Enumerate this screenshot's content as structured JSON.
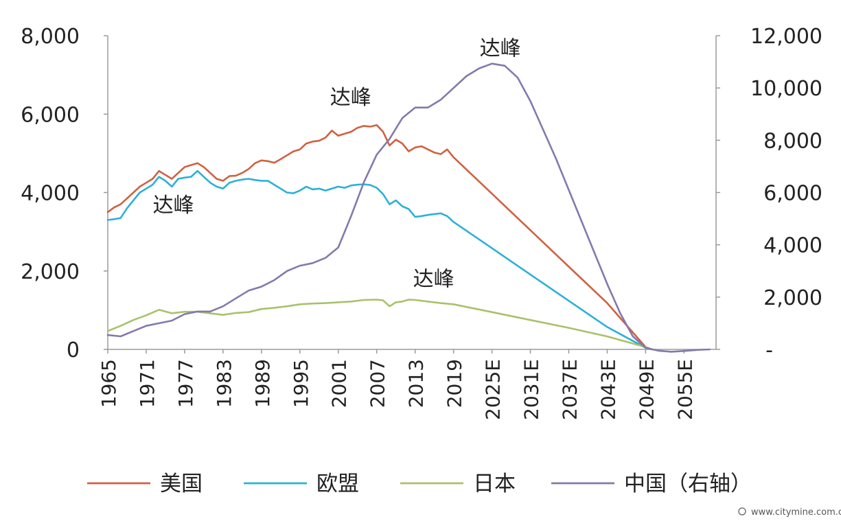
{
  "chart_data": {
    "type": "line",
    "title": "",
    "xlabel": "",
    "ylabel": "",
    "xlim": [
      1965,
      2060
    ],
    "ylim_left": [
      0,
      8000
    ],
    "ylim_right": [
      0,
      12000
    ],
    "grid": false,
    "legend_position": "bottom",
    "left_ticks": [
      0,
      2000,
      4000,
      6000,
      8000
    ],
    "left_tick_labels": [
      "0",
      "2,000",
      "4,000",
      "6,000",
      "8,000"
    ],
    "right_ticks": [
      0,
      2000,
      4000,
      6000,
      8000,
      10000,
      12000
    ],
    "right_tick_labels": [
      "-",
      "2,000",
      "4,000",
      "6,000",
      "8,000",
      "10,000",
      "12,000"
    ],
    "x_ticks": [
      1965,
      1971,
      1977,
      1983,
      1989,
      1995,
      2001,
      2007,
      2013,
      2019,
      2025,
      2031,
      2037,
      2043,
      2049,
      2055
    ],
    "x_tick_labels": [
      "1965",
      "1971",
      "1977",
      "1983",
      "1989",
      "1995",
      "2001",
      "2007",
      "2013",
      "2019",
      "2025E",
      "2031E",
      "2037E",
      "2043E",
      "2049E",
      "2055E"
    ],
    "series": [
      {
        "name": "美国",
        "axis": "left",
        "color": "#d0603f",
        "points": [
          [
            1965,
            3500
          ],
          [
            1966,
            3620
          ],
          [
            1967,
            3700
          ],
          [
            1968,
            3850
          ],
          [
            1969,
            4000
          ],
          [
            1970,
            4150
          ],
          [
            1971,
            4250
          ],
          [
            1972,
            4350
          ],
          [
            1973,
            4550
          ],
          [
            1974,
            4450
          ],
          [
            1975,
            4350
          ],
          [
            1976,
            4500
          ],
          [
            1977,
            4650
          ],
          [
            1978,
            4700
          ],
          [
            1979,
            4750
          ],
          [
            1980,
            4650
          ],
          [
            1981,
            4500
          ],
          [
            1982,
            4350
          ],
          [
            1983,
            4300
          ],
          [
            1984,
            4420
          ],
          [
            1985,
            4430
          ],
          [
            1986,
            4500
          ],
          [
            1987,
            4600
          ],
          [
            1988,
            4750
          ],
          [
            1989,
            4820
          ],
          [
            1990,
            4800
          ],
          [
            1991,
            4760
          ],
          [
            1992,
            4850
          ],
          [
            1993,
            4950
          ],
          [
            1994,
            5050
          ],
          [
            1995,
            5100
          ],
          [
            1996,
            5250
          ],
          [
            1997,
            5300
          ],
          [
            1998,
            5320
          ],
          [
            1999,
            5400
          ],
          [
            2000,
            5580
          ],
          [
            2001,
            5450
          ],
          [
            2002,
            5500
          ],
          [
            2003,
            5550
          ],
          [
            2004,
            5650
          ],
          [
            2005,
            5700
          ],
          [
            2006,
            5680
          ],
          [
            2007,
            5720
          ],
          [
            2008,
            5550
          ],
          [
            2009,
            5200
          ],
          [
            2010,
            5350
          ],
          [
            2011,
            5250
          ],
          [
            2012,
            5050
          ],
          [
            2013,
            5150
          ],
          [
            2014,
            5180
          ],
          [
            2015,
            5100
          ],
          [
            2016,
            5020
          ],
          [
            2017,
            4980
          ],
          [
            2018,
            5100
          ],
          [
            2019,
            4900
          ],
          [
            2025,
            3970
          ],
          [
            2031,
            3040
          ],
          [
            2037,
            2110
          ],
          [
            2043,
            1180
          ],
          [
            2049,
            60
          ],
          [
            2050,
            0
          ]
        ]
      },
      {
        "name": "欧盟",
        "axis": "left",
        "color": "#2bb0d9",
        "points": [
          [
            1965,
            3300
          ],
          [
            1966,
            3320
          ],
          [
            1967,
            3350
          ],
          [
            1968,
            3600
          ],
          [
            1969,
            3800
          ],
          [
            1970,
            4000
          ],
          [
            1971,
            4100
          ],
          [
            1972,
            4200
          ],
          [
            1973,
            4400
          ],
          [
            1974,
            4300
          ],
          [
            1975,
            4150
          ],
          [
            1976,
            4350
          ],
          [
            1977,
            4380
          ],
          [
            1978,
            4400
          ],
          [
            1979,
            4550
          ],
          [
            1980,
            4400
          ],
          [
            1981,
            4250
          ],
          [
            1982,
            4150
          ],
          [
            1983,
            4100
          ],
          [
            1984,
            4250
          ],
          [
            1985,
            4300
          ],
          [
            1986,
            4330
          ],
          [
            1987,
            4350
          ],
          [
            1988,
            4320
          ],
          [
            1989,
            4300
          ],
          [
            1990,
            4300
          ],
          [
            1991,
            4200
          ],
          [
            1992,
            4100
          ],
          [
            1993,
            4000
          ],
          [
            1994,
            3980
          ],
          [
            1995,
            4050
          ],
          [
            1996,
            4150
          ],
          [
            1997,
            4080
          ],
          [
            1998,
            4100
          ],
          [
            1999,
            4050
          ],
          [
            2000,
            4100
          ],
          [
            2001,
            4150
          ],
          [
            2002,
            4120
          ],
          [
            2003,
            4180
          ],
          [
            2004,
            4200
          ],
          [
            2005,
            4210
          ],
          [
            2006,
            4190
          ],
          [
            2007,
            4120
          ],
          [
            2008,
            3960
          ],
          [
            2009,
            3700
          ],
          [
            2010,
            3800
          ],
          [
            2011,
            3650
          ],
          [
            2012,
            3580
          ],
          [
            2013,
            3380
          ],
          [
            2014,
            3400
          ],
          [
            2015,
            3430
          ],
          [
            2016,
            3450
          ],
          [
            2017,
            3470
          ],
          [
            2018,
            3400
          ],
          [
            2019,
            3250
          ],
          [
            2025,
            2580
          ],
          [
            2031,
            1910
          ],
          [
            2037,
            1240
          ],
          [
            2043,
            570
          ],
          [
            2049,
            40
          ],
          [
            2050,
            0
          ]
        ]
      },
      {
        "name": "日本",
        "axis": "left",
        "color": "#a7c26a",
        "points": [
          [
            1965,
            470
          ],
          [
            1967,
            600
          ],
          [
            1969,
            750
          ],
          [
            1971,
            870
          ],
          [
            1973,
            1010
          ],
          [
            1975,
            920
          ],
          [
            1977,
            960
          ],
          [
            1979,
            960
          ],
          [
            1981,
            920
          ],
          [
            1983,
            880
          ],
          [
            1985,
            930
          ],
          [
            1987,
            950
          ],
          [
            1989,
            1030
          ],
          [
            1991,
            1060
          ],
          [
            1993,
            1100
          ],
          [
            1995,
            1150
          ],
          [
            1997,
            1170
          ],
          [
            1999,
            1180
          ],
          [
            2001,
            1200
          ],
          [
            2003,
            1220
          ],
          [
            2005,
            1260
          ],
          [
            2007,
            1270
          ],
          [
            2008,
            1250
          ],
          [
            2009,
            1100
          ],
          [
            2010,
            1200
          ],
          [
            2011,
            1220
          ],
          [
            2012,
            1270
          ],
          [
            2013,
            1260
          ],
          [
            2015,
            1220
          ],
          [
            2017,
            1180
          ],
          [
            2019,
            1150
          ],
          [
            2025,
            950
          ],
          [
            2031,
            750
          ],
          [
            2037,
            550
          ],
          [
            2043,
            330
          ],
          [
            2049,
            60
          ],
          [
            2050,
            0
          ]
        ]
      },
      {
        "name": "中国（右轴）",
        "axis": "right",
        "color": "#8478ad",
        "points": [
          [
            1965,
            550
          ],
          [
            1967,
            500
          ],
          [
            1969,
            700
          ],
          [
            1971,
            900
          ],
          [
            1973,
            1000
          ],
          [
            1975,
            1100
          ],
          [
            1977,
            1350
          ],
          [
            1979,
            1450
          ],
          [
            1981,
            1450
          ],
          [
            1983,
            1650
          ],
          [
            1985,
            1950
          ],
          [
            1987,
            2250
          ],
          [
            1989,
            2400
          ],
          [
            1991,
            2650
          ],
          [
            1993,
            3000
          ],
          [
            1995,
            3200
          ],
          [
            1997,
            3300
          ],
          [
            1999,
            3500
          ],
          [
            2001,
            3900
          ],
          [
            2003,
            5100
          ],
          [
            2005,
            6400
          ],
          [
            2007,
            7450
          ],
          [
            2009,
            8050
          ],
          [
            2011,
            8850
          ],
          [
            2013,
            9250
          ],
          [
            2015,
            9250
          ],
          [
            2017,
            9550
          ],
          [
            2019,
            10000
          ],
          [
            2021,
            10450
          ],
          [
            2023,
            10750
          ],
          [
            2025,
            10930
          ],
          [
            2027,
            10850
          ],
          [
            2029,
            10400
          ],
          [
            2031,
            9500
          ],
          [
            2033,
            8400
          ],
          [
            2035,
            7300
          ],
          [
            2037,
            6100
          ],
          [
            2039,
            4900
          ],
          [
            2041,
            3700
          ],
          [
            2043,
            2500
          ],
          [
            2045,
            1400
          ],
          [
            2047,
            500
          ],
          [
            2049,
            60
          ],
          [
            2051,
            -50
          ],
          [
            2053,
            -90
          ],
          [
            2055,
            -60
          ],
          [
            2057,
            -20
          ],
          [
            2059,
            0
          ]
        ]
      }
    ],
    "annotations": [
      {
        "text": "达峰",
        "series": "美国"
      },
      {
        "text": "达峰",
        "series": "欧盟"
      },
      {
        "text": "达峰",
        "series": "日本"
      },
      {
        "text": "达峰",
        "series": "中国（右轴）"
      }
    ]
  },
  "watermark": "www.citymine.com.cn"
}
